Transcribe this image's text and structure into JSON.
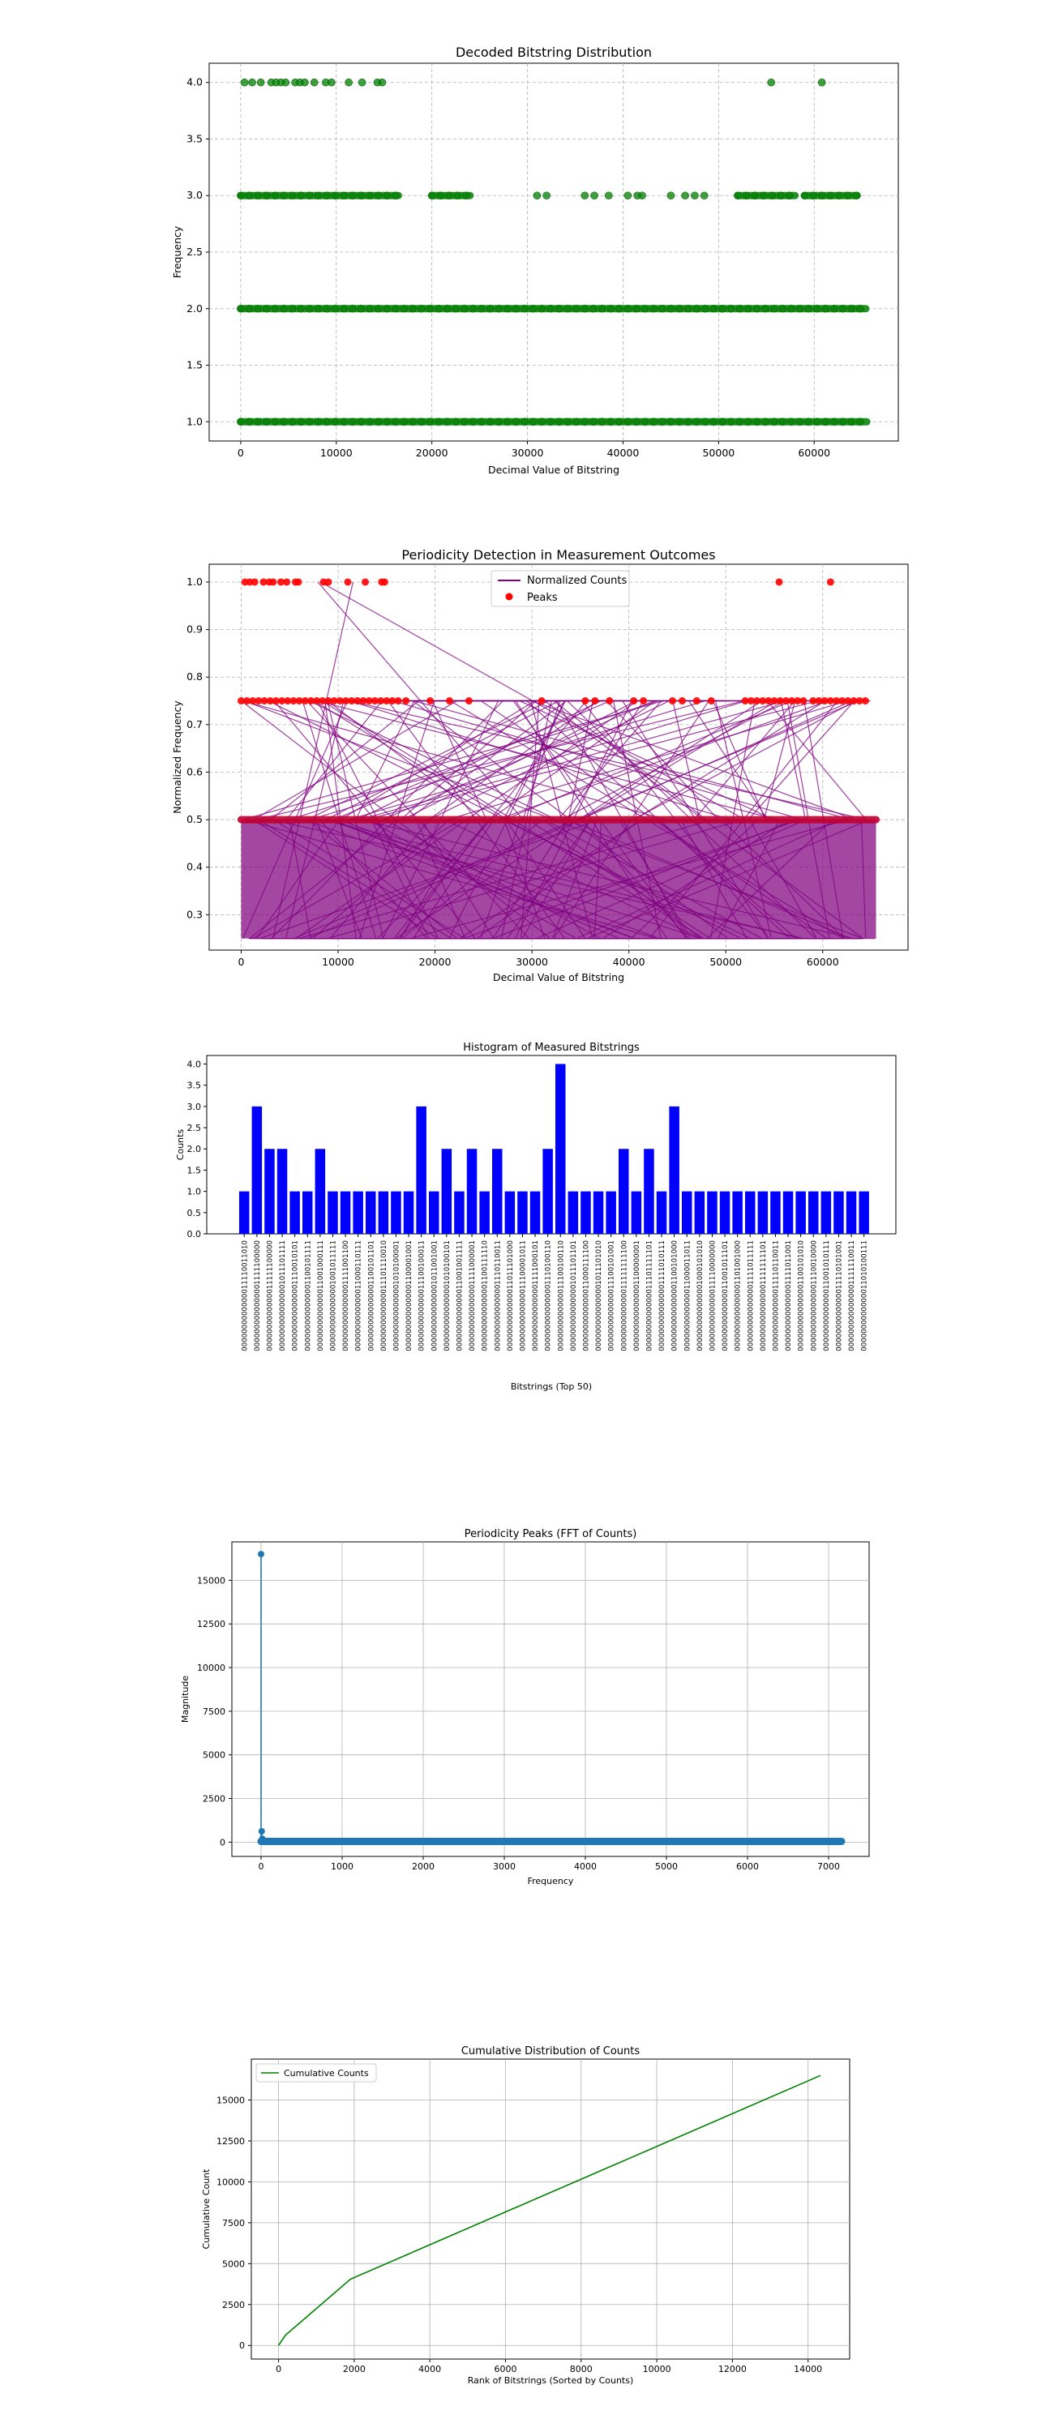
{
  "chart_data": [
    {
      "type": "scatter",
      "title": "Decoded Bitstring Distribution",
      "xlabel": "Decimal Value of Bitstring",
      "ylabel": "Frequency",
      "xlim": [
        -3300,
        68800
      ],
      "ylim": [
        0.83,
        4.17
      ],
      "xticks": [
        0,
        10000,
        20000,
        30000,
        40000,
        50000,
        60000
      ],
      "yticks": [
        1.0,
        1.5,
        2.0,
        2.5,
        3.0,
        3.5,
        4.0
      ],
      "grid": true,
      "color": "#008000",
      "series": [
        {
          "y": 4,
          "x": [
            400,
            1200,
            2100,
            3200,
            3700,
            4200,
            4700,
            5700,
            6200,
            6700,
            7700,
            8900,
            9500,
            11300,
            12700,
            14300,
            14800,
            55500,
            60800
          ]
        },
        {
          "y": 3,
          "segments": [
            [
              0,
              16500
            ],
            [
              20000,
              24000
            ],
            [
              52000,
              58000
            ],
            [
              59000,
              64500
            ]
          ],
          "x": [
            31000,
            32000,
            36000,
            37000,
            38500,
            40500,
            41500,
            42000,
            45000,
            46500,
            47500,
            48500
          ]
        },
        {
          "y": 2,
          "segments": [
            [
              0,
              65400
            ]
          ]
        },
        {
          "y": 1,
          "segments": [
            [
              0,
              65500
            ]
          ]
        }
      ]
    },
    {
      "type": "line",
      "title": "Periodicity Detection in Measurement Outcomes",
      "xlabel": "Decimal Value of Bitstring",
      "ylabel": "Normalized Frequency",
      "xlim": [
        -3300,
        68800
      ],
      "ylim": [
        0.2255,
        1.0375
      ],
      "xticks": [
        0,
        10000,
        20000,
        30000,
        40000,
        50000,
        60000
      ],
      "yticks": [
        0.3,
        0.4,
        0.5,
        0.6,
        0.7,
        0.8,
        0.9,
        1.0
      ],
      "grid": true,
      "legend": "upper center",
      "series": [
        {
          "name": "Normalized Counts",
          "color": "#800080"
        },
        {
          "name": "Peaks",
          "color": "#ff0000",
          "y_levels": [
            1.0,
            0.75,
            0.5
          ]
        }
      ],
      "peaks_at_1": [
        400,
        900,
        1400,
        2300,
        2900,
        3300,
        4100,
        4700,
        5600,
        5900,
        8500,
        9000,
        11000,
        12800,
        14500,
        14800,
        55500,
        60800
      ],
      "peaks_at_075": {
        "segments": [
          [
            0,
            16500
          ],
          [
            52000,
            58000
          ],
          [
            59000,
            64500
          ]
        ],
        "x": [
          17000,
          19500,
          21500,
          23500,
          31000,
          35500,
          36500,
          38000,
          40500,
          41500,
          44500,
          45500,
          47000,
          48500
        ]
      }
    },
    {
      "type": "bar",
      "title": "Histogram of Measured Bitstrings",
      "xlabel": "Bitstrings (Top 50)",
      "ylabel": "Counts",
      "ylim": [
        0,
        4.2
      ],
      "yticks": [
        0.0,
        0.5,
        1.0,
        1.5,
        2.0,
        2.5,
        3.0,
        3.5,
        4.0
      ],
      "color": "#0000ff",
      "values": [
        1,
        3,
        2,
        2,
        1,
        1,
        2,
        1,
        1,
        1,
        1,
        1,
        1,
        1,
        3,
        1,
        2,
        1,
        2,
        1,
        2,
        1,
        1,
        1,
        2,
        4,
        1,
        1,
        1,
        1,
        2,
        1,
        2,
        1,
        3,
        1,
        1,
        1,
        1,
        1,
        1,
        1,
        1,
        1,
        1,
        1,
        1,
        1,
        1,
        1
      ],
      "categories": [
        "0000000000000011110011010",
        "0000000000000001111100000",
        "0000000000000011111100000",
        "0000000000000001011101111",
        "0000000000000001110010101",
        "0000000000000001100101111",
        "0000000000000011001000111",
        "0000000000000001001011111",
        "0000000000000001111001100",
        "0000000000000011000110111",
        "0000000000000001100101101",
        "0000000000000011101110010",
        "0000000000000001010100001",
        "0000000000000001100001001",
        "0000000000000011100100011",
        "0000000000000001011001001",
        "0000000000000001010100101",
        "0000000000000011001001111",
        "0000000000000001111000001",
        "0000000000000001100111110",
        "0000000000000001110110011",
        "0000000000000011011101000",
        "0000000000000011100001011",
        "0000000000000001111000101",
        "0000000000000001110100110",
        "0000000000000011100100110",
        "0000000000000001011101101",
        "0000000000000011000111100",
        "0000000000000001011101010",
        "0000000000000011100101001",
        "0000000000000011111111100",
        "0000000000000001100000001",
        "0000000000000011101111101",
        "0000000000000001111010111",
        "0000000000000001100101000",
        "0000000000000011000011011",
        "0000000000000001000101010",
        "0000000000000011110000000",
        "0000000000000011001011101",
        "0000000000000001101001000",
        "0000000000000001111011111",
        "0000000000000001111111101",
        "0000000000000011110110011",
        "0000000000000001111011001",
        "0000000000000001100101010",
        "0000000000000001110010000",
        "0000000000000011001010111",
        "0000000000000011110101001",
        "0000000000000001111110011",
        "0000000000000011010100111"
      ]
    },
    {
      "type": "line",
      "title": "Periodicity Peaks (FFT of Counts)",
      "xlabel": "Frequency",
      "ylabel": "Magnitude",
      "xlim": [
        -360,
        7500
      ],
      "ylim": [
        -820,
        17200
      ],
      "xticks": [
        0,
        1000,
        2000,
        3000,
        4000,
        5000,
        6000,
        7000
      ],
      "yticks": [
        0,
        2500,
        5000,
        7500,
        10000,
        12500,
        15000
      ],
      "grid": true,
      "color": "#1f77b4",
      "points": [
        [
          0,
          16500
        ],
        [
          8,
          620
        ],
        [
          16,
          190
        ],
        [
          30,
          95
        ],
        [
          60,
          55
        ]
      ],
      "baseline": {
        "x_start": 0,
        "x_end": 7160,
        "value": 40
      }
    },
    {
      "type": "line",
      "title": "Cumulative Distribution of Counts",
      "xlabel": "Rank of Bitstrings (Sorted by Counts)",
      "ylabel": "Cumulative Count",
      "xlim": [
        -720,
        15100
      ],
      "ylim": [
        -830,
        17500
      ],
      "xticks": [
        0,
        2000,
        4000,
        6000,
        8000,
        10000,
        12000,
        14000
      ],
      "yticks": [
        0,
        2500,
        5000,
        7500,
        10000,
        12500,
        15000
      ],
      "grid": true,
      "legend": "upper left",
      "color": "#008000",
      "series": [
        {
          "name": "Cumulative Counts"
        }
      ],
      "points": [
        [
          0,
          0
        ],
        [
          180,
          620
        ],
        [
          1900,
          4050
        ],
        [
          14330,
          16500
        ]
      ]
    }
  ]
}
